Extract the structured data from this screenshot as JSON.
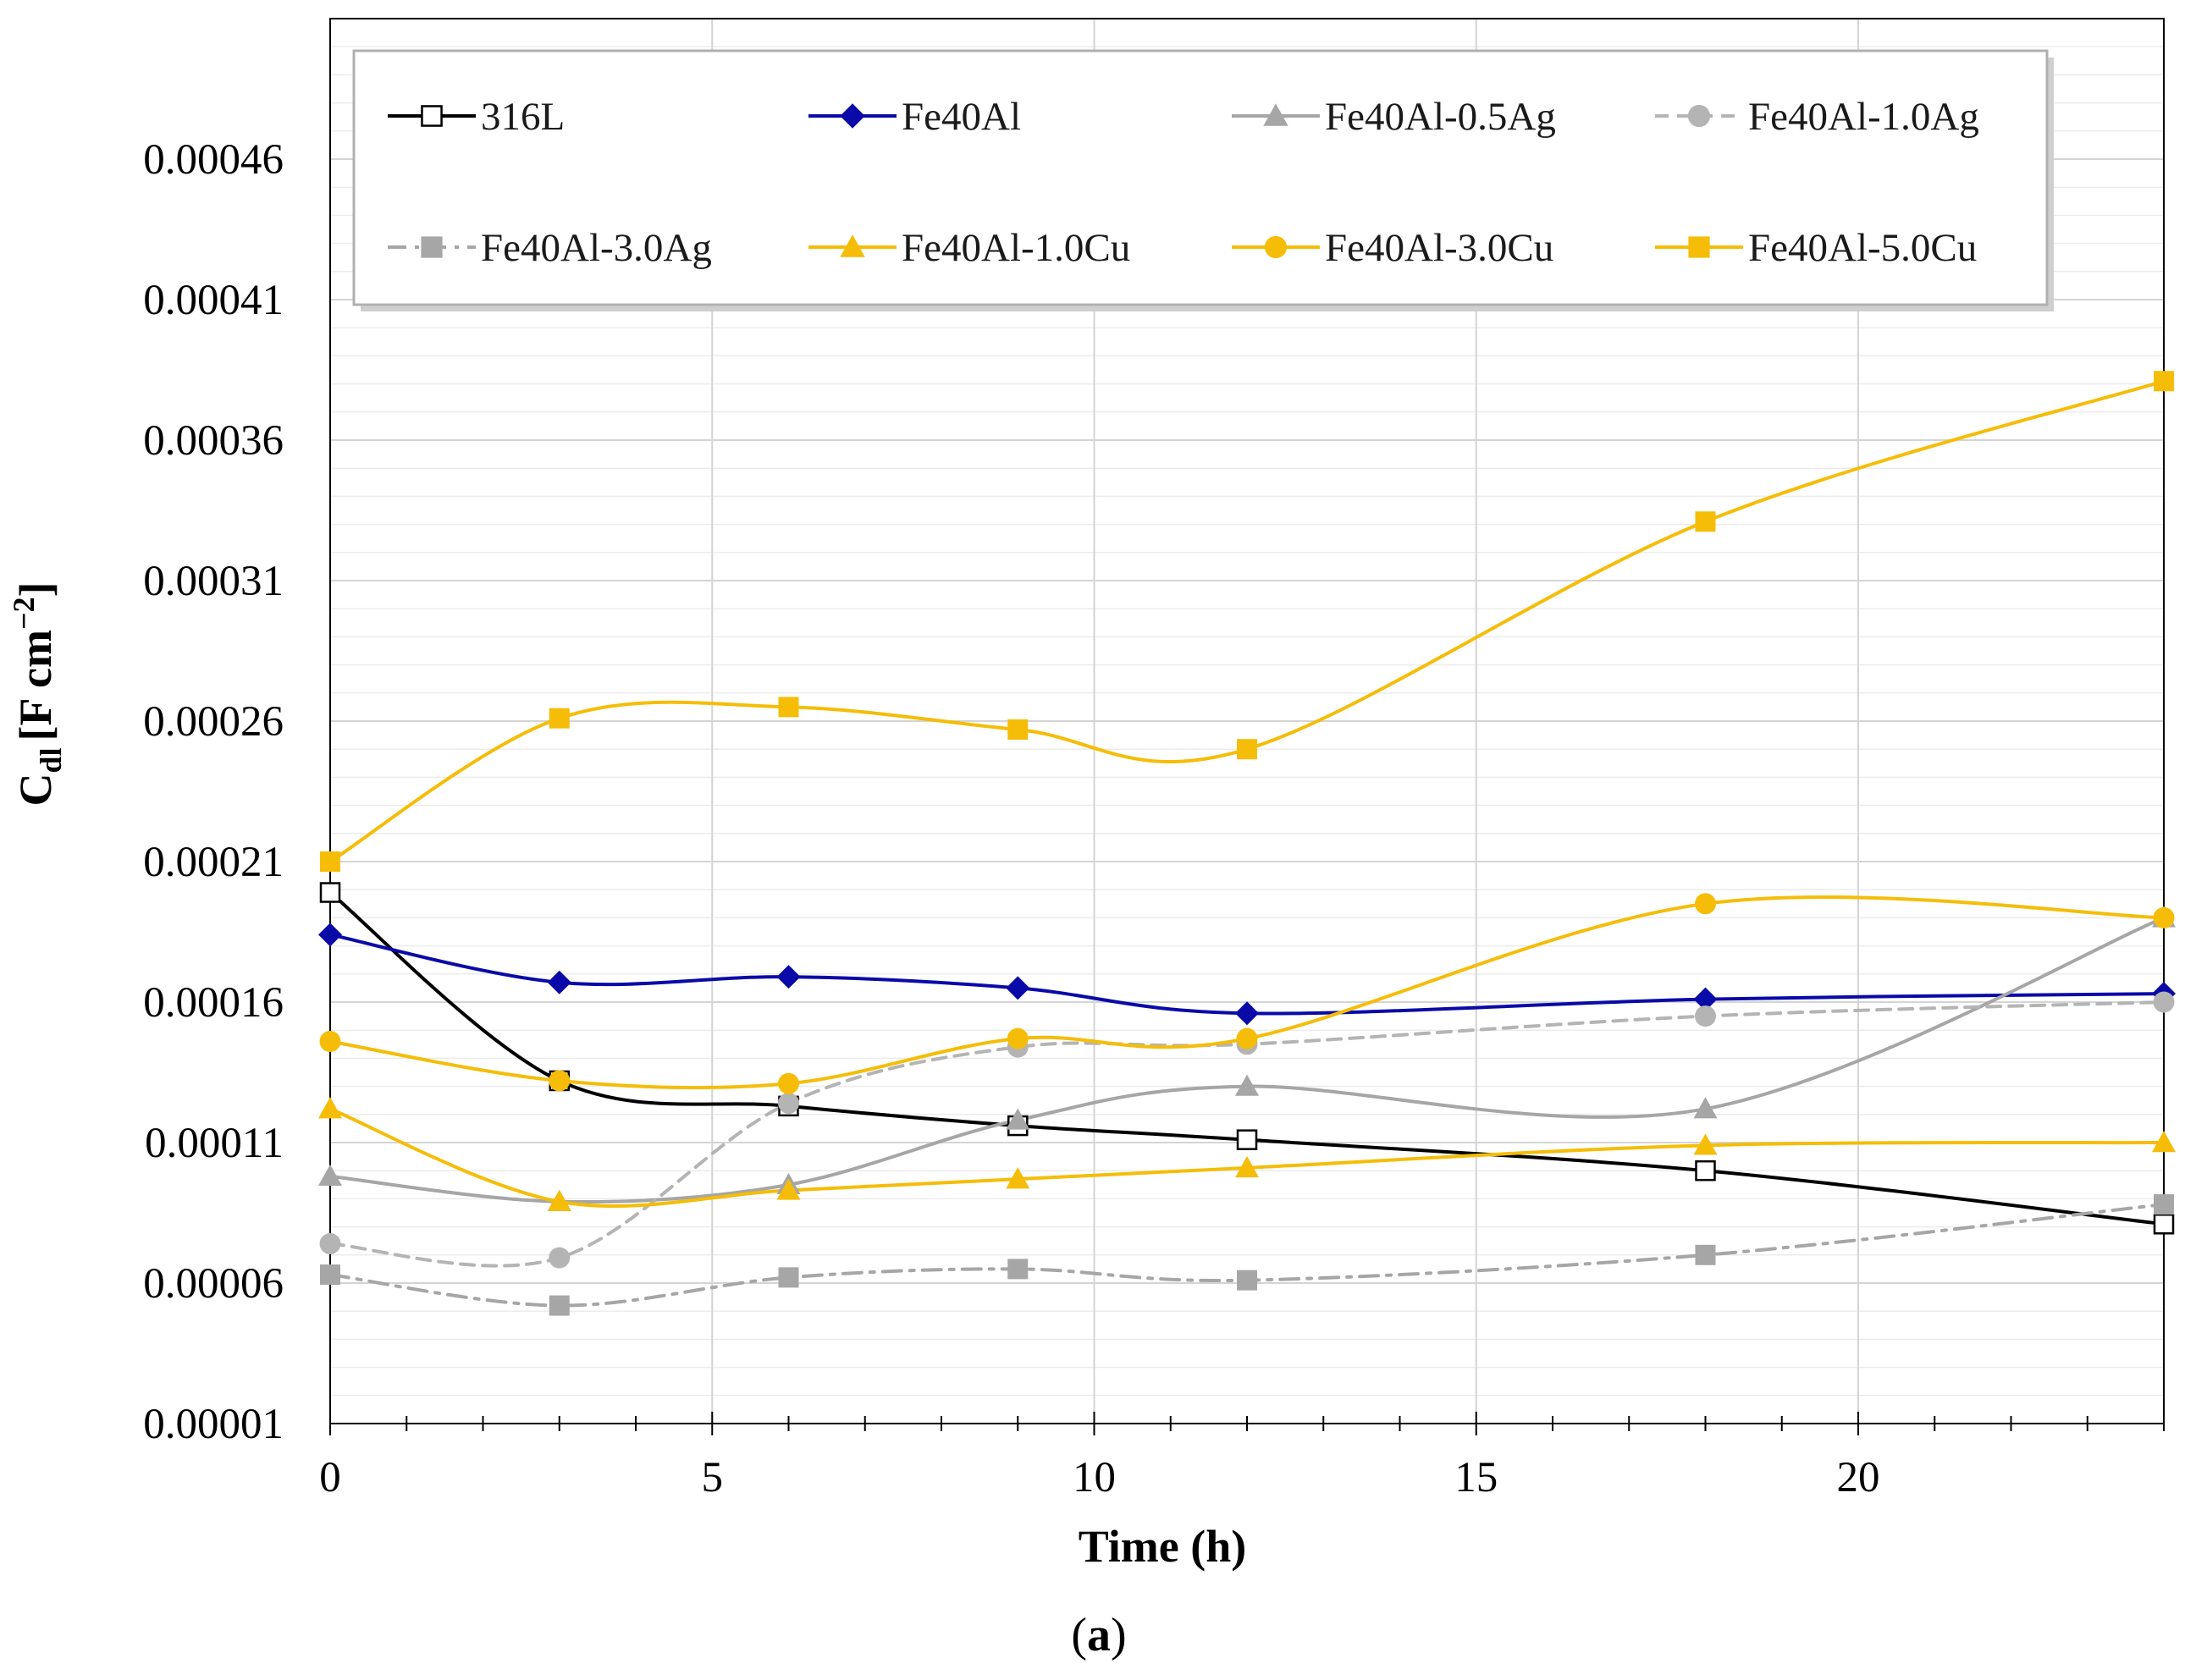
{
  "chart_data": {
    "type": "line",
    "title": "",
    "caption_open": "(",
    "caption_letter": "a",
    "caption_close": ")",
    "xlabel": "Time (h)",
    "ylabel_main": "C",
    "ylabel_sub": "dl",
    "ylabel_units": "[F cm",
    "ylabel_exp": "−2",
    "ylabel_close": "]",
    "xlim": [
      0,
      24
    ],
    "ylim": [
      1e-05,
      0.00051
    ],
    "xticks": [
      0,
      5,
      10,
      15,
      20
    ],
    "xtick_labels": [
      "0",
      "5",
      "10",
      "15",
      "20"
    ],
    "yticks": [
      1e-05,
      6e-05,
      0.00011,
      0.00016,
      0.00021,
      0.00026,
      0.00031,
      0.00036,
      0.00041,
      0.00046
    ],
    "ytick_labels": [
      "0.00001",
      "0.00006",
      "0.00011",
      "0.00016",
      "0.00021",
      "0.00026",
      "0.00031",
      "0.00036",
      "0.00041",
      "0.00046"
    ],
    "grid": true,
    "legend_position": "top",
    "x": [
      0,
      3,
      6,
      9,
      12,
      18,
      24
    ],
    "series": [
      {
        "name": "316L",
        "color": "#000000",
        "marker": "square-open",
        "dash": "solid",
        "values": [
          0.000199,
          0.000132,
          0.000123,
          0.000116,
          0.000111,
          0.0001,
          8.1e-05
        ]
      },
      {
        "name": "Fe40Al",
        "color": "#0a0aa8",
        "marker": "diamond",
        "dash": "solid",
        "values": [
          0.000184,
          0.000167,
          0.000169,
          0.000165,
          0.000156,
          0.000161,
          0.000163
        ]
      },
      {
        "name": "Fe40Al-0.5Ag",
        "color": "#a6a6a6",
        "marker": "triangle",
        "dash": "solid",
        "values": [
          9.8e-05,
          8.9e-05,
          9.5e-05,
          0.000118,
          0.00013,
          0.000122,
          0.00019
        ]
      },
      {
        "name": "Fe40Al-1.0Ag",
        "color": "#b4b4b4",
        "marker": "circle",
        "dash": "dashed",
        "values": [
          7.4e-05,
          6.9e-05,
          0.000124,
          0.000144,
          0.000145,
          0.000155,
          0.00016
        ]
      },
      {
        "name": "Fe40Al-3.0Ag",
        "color": "#a6a6a6",
        "marker": "square",
        "dash": "dashdot",
        "values": [
          6.3e-05,
          5.2e-05,
          6.2e-05,
          6.5e-05,
          6.1e-05,
          7e-05,
          8.8e-05
        ]
      },
      {
        "name": "Fe40Al-1.0Cu",
        "color": "#f5bd08",
        "marker": "triangle",
        "dash": "solid",
        "values": [
          0.000122,
          8.9e-05,
          9.3e-05,
          9.7e-05,
          0.000101,
          0.000109,
          0.00011
        ]
      },
      {
        "name": "Fe40Al-3.0Cu",
        "color": "#f5bd08",
        "marker": "circle",
        "dash": "solid",
        "values": [
          0.000146,
          0.000132,
          0.000131,
          0.000147,
          0.000147,
          0.000195,
          0.00019
        ]
      },
      {
        "name": "Fe40Al-5.0Cu",
        "color": "#f5bd08",
        "marker": "square",
        "dash": "solid",
        "values": [
          0.00021,
          0.000261,
          0.000265,
          0.000257,
          0.00025,
          0.000331,
          0.000381
        ]
      }
    ]
  }
}
